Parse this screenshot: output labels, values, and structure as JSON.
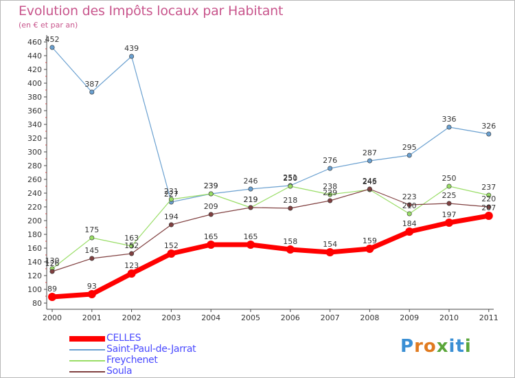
{
  "title": "Evolution des Impôts locaux par Habitant",
  "subtitle": "(en € et par an)",
  "logo": "Proxiti",
  "colors": {
    "title": "#c8558c",
    "legend_text": "#4a4aff",
    "axis": "#444444",
    "grid_tick": "#cc4444"
  },
  "chart_data": {
    "type": "line",
    "title": "Evolution des Impôts locaux par Habitant",
    "subtitle": "(en € et par an)",
    "x": [
      "2000",
      "2001",
      "2002",
      "2003",
      "2004",
      "2005",
      "2006",
      "2007",
      "2008",
      "2009",
      "2010",
      "2011"
    ],
    "ylim": [
      80,
      460
    ],
    "yticks": [
      80,
      100,
      120,
      140,
      160,
      180,
      200,
      220,
      240,
      260,
      280,
      300,
      320,
      340,
      360,
      380,
      400,
      420,
      440,
      460
    ],
    "grid": false,
    "legend_position": "bottom-left",
    "series": [
      {
        "name": "CELLES",
        "color": "#ff0000",
        "values": [
          89,
          93,
          123,
          152,
          165,
          165,
          158,
          154,
          159,
          184,
          197,
          207
        ],
        "labels": [
          "89",
          "93",
          "123",
          "152",
          "165",
          "165",
          "158",
          "154",
          "159",
          "184",
          "197",
          "207"
        ]
      },
      {
        "name": "Saint-Paul-de-Jarrat",
        "color": "#6aa0d0",
        "values": [
          452,
          387,
          439,
          227,
          239,
          246,
          251,
          276,
          287,
          295,
          336,
          326
        ],
        "labels": [
          "452",
          "387",
          "439",
          "227",
          "239",
          "246",
          "251",
          "276",
          "287",
          "295",
          "336",
          "326"
        ]
      },
      {
        "name": "Freychenet",
        "color": "#99dd66",
        "values": [
          130,
          175,
          163,
          231,
          239,
          219,
          250,
          238,
          245,
          210,
          250,
          237
        ],
        "labels": [
          "130",
          "175",
          "163",
          "231",
          "239",
          "219",
          "250",
          "238",
          "245",
          "210",
          "250",
          "237"
        ]
      },
      {
        "name": "Soula",
        "color": "#804040",
        "values": [
          126,
          145,
          152,
          194,
          209,
          219,
          218,
          229,
          246,
          223,
          225,
          220
        ],
        "labels": [
          "126",
          "145",
          "152",
          "194",
          "209",
          "219",
          "218",
          "229",
          "246",
          "223",
          "225",
          "220"
        ]
      }
    ]
  }
}
